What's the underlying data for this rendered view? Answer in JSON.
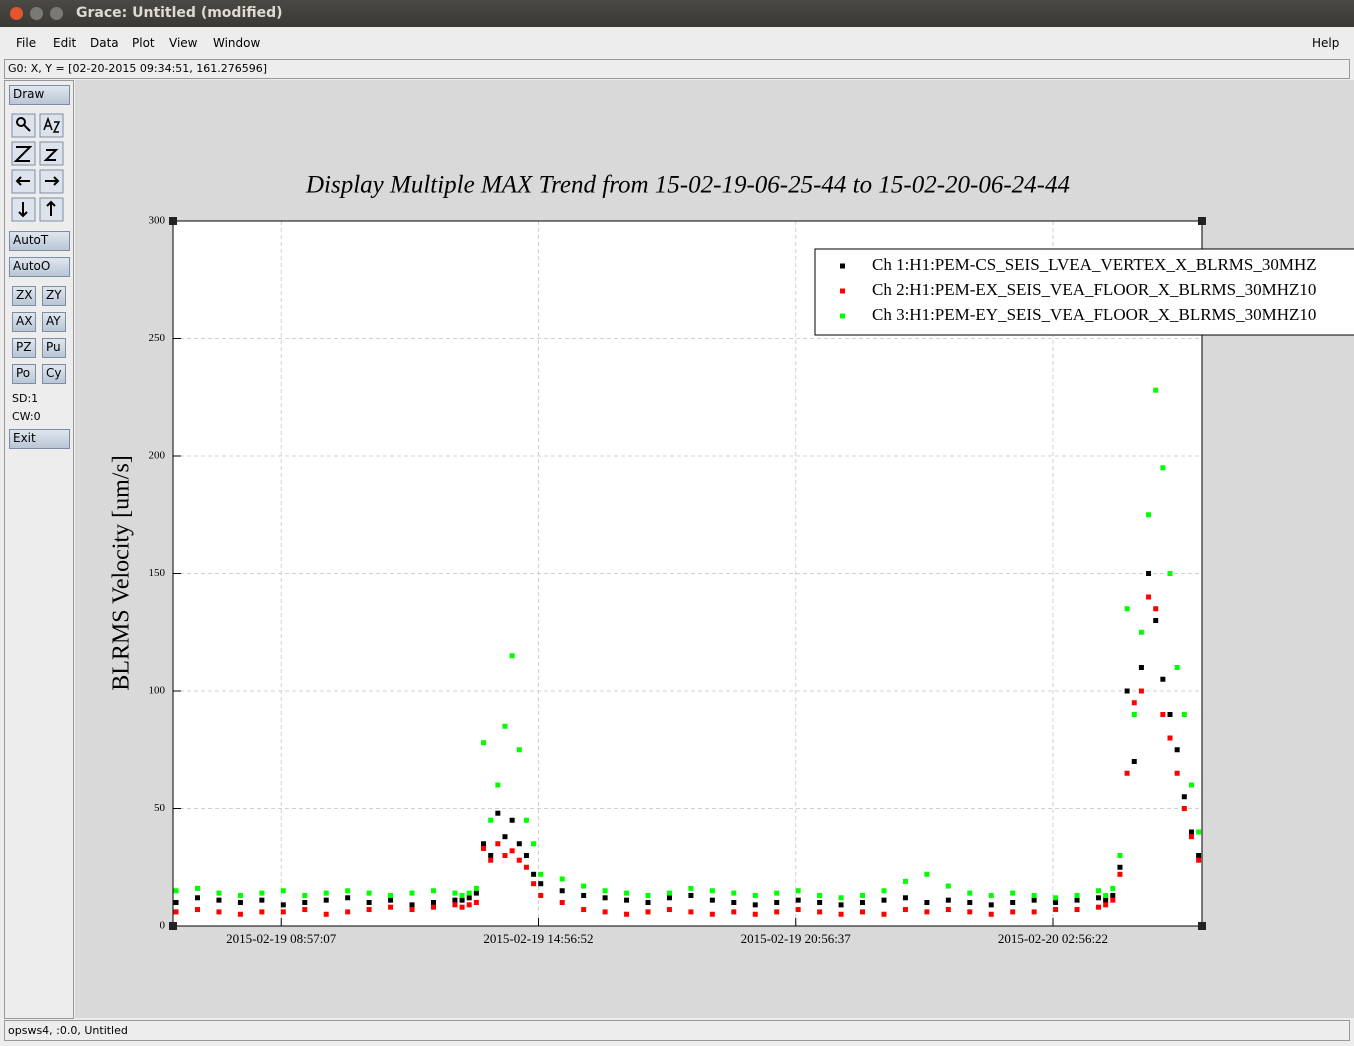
{
  "window": {
    "title": "Grace: Untitled (modified)"
  },
  "menu": [
    "File",
    "Edit",
    "Data",
    "Plot",
    "View",
    "Window"
  ],
  "help": "Help",
  "status": "G0: X, Y = [02-20-2015 09:34:51, 161.276596]",
  "toolbar": {
    "draw": "Draw",
    "auto": [
      "AutoT",
      "AutoO"
    ],
    "buttons": [
      "ZX",
      "ZY",
      "AX",
      "AY",
      "PZ",
      "Pu",
      "Po",
      "Cy"
    ],
    "info": [
      "SD:1",
      "CW:0"
    ],
    "exit": "Exit"
  },
  "footer": "opsws4, :0.0, Untitled",
  "chart_data": {
    "type": "scatter",
    "title": "Display Multiple MAX Trend from 15-02-19-06-25-44 to 15-02-20-06-24-44",
    "ylabel": "BLRMS Velocity [um/s]",
    "x": [
      "2015-02-19 06:30:00",
      "2015-02-19 07:00:00",
      "2015-02-19 07:30:00",
      "2015-02-19 08:00:00",
      "2015-02-19 08:30:00",
      "2015-02-19 09:00:00",
      "2015-02-19 09:30:00",
      "2015-02-19 10:00:00",
      "2015-02-19 10:30:00",
      "2015-02-19 11:00:00",
      "2015-02-19 11:30:00",
      "2015-02-19 12:00:00",
      "2015-02-19 12:30:00",
      "2015-02-19 13:00:00",
      "2015-02-19 13:10:00",
      "2015-02-19 13:20:00",
      "2015-02-19 13:30:00",
      "2015-02-19 13:40:00",
      "2015-02-19 13:50:00",
      "2015-02-19 14:00:00",
      "2015-02-19 14:10:00",
      "2015-02-19 14:20:00",
      "2015-02-19 14:30:00",
      "2015-02-19 14:40:00",
      "2015-02-19 14:50:00",
      "2015-02-19 15:00:00",
      "2015-02-19 15:30:00",
      "2015-02-19 16:00:00",
      "2015-02-19 16:30:00",
      "2015-02-19 17:00:00",
      "2015-02-19 17:30:00",
      "2015-02-19 18:00:00",
      "2015-02-19 18:30:00",
      "2015-02-19 19:00:00",
      "2015-02-19 19:30:00",
      "2015-02-19 20:00:00",
      "2015-02-19 20:30:00",
      "2015-02-19 21:00:00",
      "2015-02-19 21:30:00",
      "2015-02-19 22:00:00",
      "2015-02-19 22:30:00",
      "2015-02-19 23:00:00",
      "2015-02-19 23:30:00",
      "2015-02-20 00:00:00",
      "2015-02-20 00:30:00",
      "2015-02-20 01:00:00",
      "2015-02-20 01:30:00",
      "2015-02-20 02:00:00",
      "2015-02-20 02:30:00",
      "2015-02-20 03:00:00",
      "2015-02-20 03:30:00",
      "2015-02-20 04:00:00",
      "2015-02-20 04:10:00",
      "2015-02-20 04:20:00",
      "2015-02-20 04:30:00",
      "2015-02-20 04:40:00",
      "2015-02-20 04:50:00",
      "2015-02-20 05:00:00",
      "2015-02-20 05:10:00",
      "2015-02-20 05:20:00",
      "2015-02-20 05:30:00",
      "2015-02-20 05:40:00",
      "2015-02-20 05:50:00",
      "2015-02-20 06:00:00",
      "2015-02-20 06:10:00",
      "2015-02-20 06:20:00"
    ],
    "series": [
      {
        "name": "Ch 1:H1:PEM-CS_SEIS_LVEA_VERTEX_X_BLRMS_30MHZ",
        "color": "#000000",
        "values": [
          10,
          12,
          11,
          10,
          11,
          9,
          10,
          11,
          12,
          10,
          11,
          9,
          10,
          11,
          11,
          12,
          14,
          35,
          30,
          48,
          38,
          45,
          35,
          30,
          22,
          18,
          15,
          13,
          12,
          11,
          10,
          12,
          13,
          11,
          10,
          9,
          10,
          11,
          10,
          9,
          10,
          11,
          12,
          10,
          11,
          10,
          9,
          10,
          11,
          10,
          11,
          12,
          11,
          13,
          25,
          100,
          70,
          110,
          150,
          130,
          105,
          90,
          75,
          55,
          40,
          30
        ]
      },
      {
        "name": "Ch 2:H1:PEM-EX_SEIS_VEA_FLOOR_X_BLRMS_30MHZ10",
        "color": "#ff0000",
        "values": [
          6,
          7,
          6,
          5,
          6,
          6,
          7,
          5,
          6,
          7,
          8,
          7,
          8,
          9,
          8,
          9,
          10,
          33,
          28,
          35,
          30,
          32,
          28,
          25,
          18,
          13,
          10,
          7,
          6,
          5,
          6,
          7,
          6,
          5,
          6,
          5,
          6,
          7,
          6,
          5,
          6,
          5,
          7,
          6,
          7,
          6,
          5,
          6,
          6,
          7,
          7,
          8,
          9,
          11,
          22,
          65,
          95,
          100,
          140,
          135,
          90,
          80,
          65,
          50,
          38,
          28
        ]
      },
      {
        "name": "Ch 3:H1:PEM-EY_SEIS_VEA_FLOOR_X_BLRMS_30MHZ10",
        "color": "#00ff00",
        "values": [
          15,
          16,
          14,
          13,
          14,
          15,
          13,
          14,
          15,
          14,
          13,
          14,
          15,
          14,
          13,
          14,
          16,
          78,
          45,
          60,
          85,
          115,
          75,
          45,
          35,
          22,
          20,
          17,
          15,
          14,
          13,
          14,
          16,
          15,
          14,
          13,
          14,
          15,
          13,
          12,
          13,
          15,
          19,
          22,
          17,
          14,
          13,
          14,
          13,
          12,
          13,
          15,
          13,
          16,
          30,
          135,
          90,
          125,
          175,
          228,
          195,
          150,
          110,
          90,
          60,
          40
        ]
      }
    ],
    "xlim": [
      "2015-02-19 06:25:44",
      "2015-02-20 06:24:44"
    ],
    "xticks": [
      "2015-02-19 08:57:07",
      "2015-02-19 14:56:52",
      "2015-02-19 20:56:37",
      "2015-02-20 02:56:22"
    ],
    "ylim": [
      0,
      300
    ],
    "yticks": [
      0,
      50,
      100,
      150,
      200,
      250,
      300
    ],
    "grid": true,
    "legend": "top-right"
  }
}
